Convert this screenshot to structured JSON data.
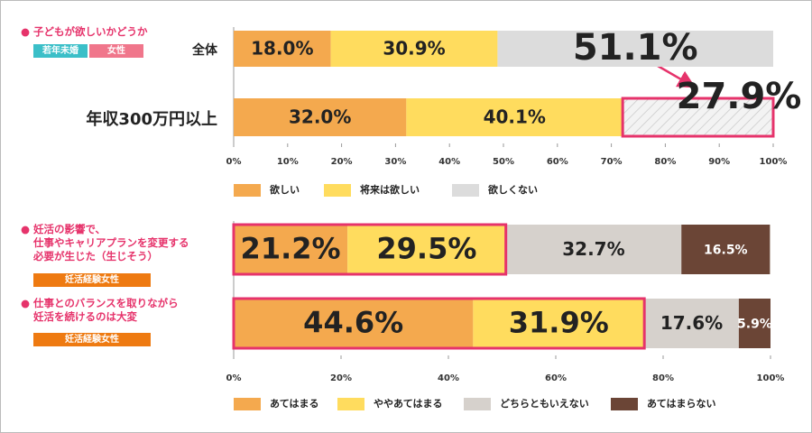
{
  "chart_data": [
    {
      "type": "stacked-bar-horizontal",
      "title": "子どもが欲しいかどうか",
      "tags": [
        "若年未婚",
        "女性"
      ],
      "categories": [
        "全体",
        "年収300万円以上"
      ],
      "series": [
        {
          "name": "欲しい",
          "color": "#f4a94e",
          "values": [
            18.0,
            32.0
          ],
          "value_labels": [
            "18.0%",
            "32.0%"
          ]
        },
        {
          "name": "将来は欲しい",
          "color": "#ffdc5e",
          "values": [
            30.9,
            40.1
          ],
          "value_labels": [
            "30.9%",
            "40.1%"
          ]
        },
        {
          "name": "欲しくない",
          "color": "#dcdcdc",
          "values": [
            51.1,
            27.9
          ],
          "value_labels": [
            "51.1%",
            "27.9%"
          ]
        }
      ],
      "xlim": [
        0,
        100
      ],
      "xticks": [
        {
          "value": 0,
          "label": "0%"
        },
        {
          "value": 10,
          "label": "10%"
        },
        {
          "value": 20,
          "label": "20%"
        },
        {
          "value": 30,
          "label": "30%"
        },
        {
          "value": 40,
          "label": "40%"
        },
        {
          "value": 50,
          "label": "50%"
        },
        {
          "value": 60,
          "label": "60%"
        },
        {
          "value": 70,
          "label": "70%"
        },
        {
          "value": 80,
          "label": "80%"
        },
        {
          "value": 90,
          "label": "90%"
        },
        {
          "value": 100,
          "label": "100%"
        }
      ]
    },
    {
      "type": "stacked-bar-horizontal",
      "categories": [
        "妊活の影響で、\n仕事やキャリアプランを変更する\n必要が生じた（生じそう）",
        "仕事とのバランスを取りながら\n妊活を続けるのは大変"
      ],
      "category_tags": [
        "妊活経験女性",
        "妊活経験女性"
      ],
      "series": [
        {
          "name": "あてはまる",
          "color": "#f4a94e",
          "values": [
            21.2,
            44.6
          ],
          "value_labels": [
            "21.2%",
            "44.6%"
          ]
        },
        {
          "name": "ややあてはまる",
          "color": "#ffdc5e",
          "values": [
            29.5,
            31.9
          ],
          "value_labels": [
            "29.5%",
            "31.9%"
          ]
        },
        {
          "name": "どちらともいえない",
          "color": "#d6d1cc",
          "values": [
            32.7,
            17.6
          ],
          "value_labels": [
            "32.7%",
            "17.6%"
          ]
        },
        {
          "name": "あてはまらない",
          "color": "#6b4536",
          "values": [
            16.5,
            5.9
          ],
          "value_labels": [
            "16.5%",
            "5.9%"
          ]
        }
      ],
      "xlim": [
        0,
        100
      ],
      "xticks": [
        {
          "value": 0,
          "label": "0%"
        },
        {
          "value": 20,
          "label": "20%"
        },
        {
          "value": 40,
          "label": "40%"
        },
        {
          "value": 60,
          "label": "60%"
        },
        {
          "value": 80,
          "label": "80%"
        },
        {
          "value": 100,
          "label": "100%"
        }
      ]
    }
  ]
}
